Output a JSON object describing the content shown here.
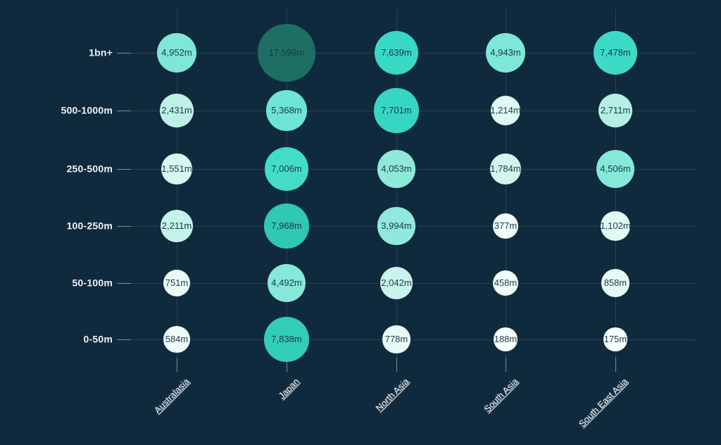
{
  "page": {
    "background": "#102a3d"
  },
  "styles": {
    "grid_color": "#2a4350",
    "tick_color": "#7c8c96",
    "row_label_color": "#eef2f4",
    "col_label_color": "#f6f9fa",
    "bubble_text_color": "#1c3a49"
  },
  "chart_data": {
    "type": "bubble",
    "title": "",
    "xlabel": "",
    "ylabel": "",
    "unit_suffix": "m",
    "grid": true,
    "legend": null,
    "columns": [
      "Australasia",
      "Japan",
      "North Asia",
      "South Asia",
      "South East Asia"
    ],
    "rows": [
      "1bn+",
      "500-1000m",
      "250-500m",
      "100-250m",
      "50-100m",
      "0-50m"
    ],
    "values": [
      [
        4952,
        17599,
        7639,
        4943,
        7478
      ],
      [
        2431,
        5368,
        7701,
        1214,
        2711
      ],
      [
        1551,
        7006,
        4053,
        1784,
        4506
      ],
      [
        2211,
        7968,
        3994,
        377,
        1102
      ],
      [
        751,
        4492,
        2042,
        458,
        858
      ],
      [
        584,
        7838,
        778,
        188,
        175
      ]
    ],
    "labels": [
      [
        "4,952m",
        "17,599m",
        "7,639m",
        "4,943m",
        "7,478m"
      ],
      [
        "2,431m",
        "5,368m",
        "7,701m",
        "1,214m",
        "2,711m"
      ],
      [
        "1,551m",
        "7,006m",
        "4,053m",
        "1,784m",
        "4,506m"
      ],
      [
        "2,211m",
        "7,968m",
        "3,994m",
        "377m",
        "1,102m"
      ],
      [
        "751m",
        "4,492m",
        "2,042m",
        "458m",
        "858m"
      ],
      [
        "584m",
        "7,838m",
        "778m",
        "188m",
        "175m"
      ]
    ],
    "colors": [
      [
        "#7ee7d8",
        "#1e6f63",
        "#38d8c4",
        "#7ee7d8",
        "#3cdac6"
      ],
      [
        "#bdf1e7",
        "#6ee4d4",
        "#36d6c2",
        "#e0f9f3",
        "#b4efe4"
      ],
      [
        "#d8f7f0",
        "#43dcc8",
        "#8ee9db",
        "#d2f5ee",
        "#86e8d9"
      ],
      [
        "#c4f3e9",
        "#30c7b3",
        "#90e9dc",
        "#f4fdfb",
        "#e3f9f4"
      ],
      [
        "#eafbf7",
        "#86e8d9",
        "#caf4eb",
        "#f2fcfa",
        "#e8faf6"
      ],
      [
        "#effcf9",
        "#32cdb9",
        "#eafbf7",
        "#fafefd",
        "#fafefd"
      ]
    ]
  }
}
